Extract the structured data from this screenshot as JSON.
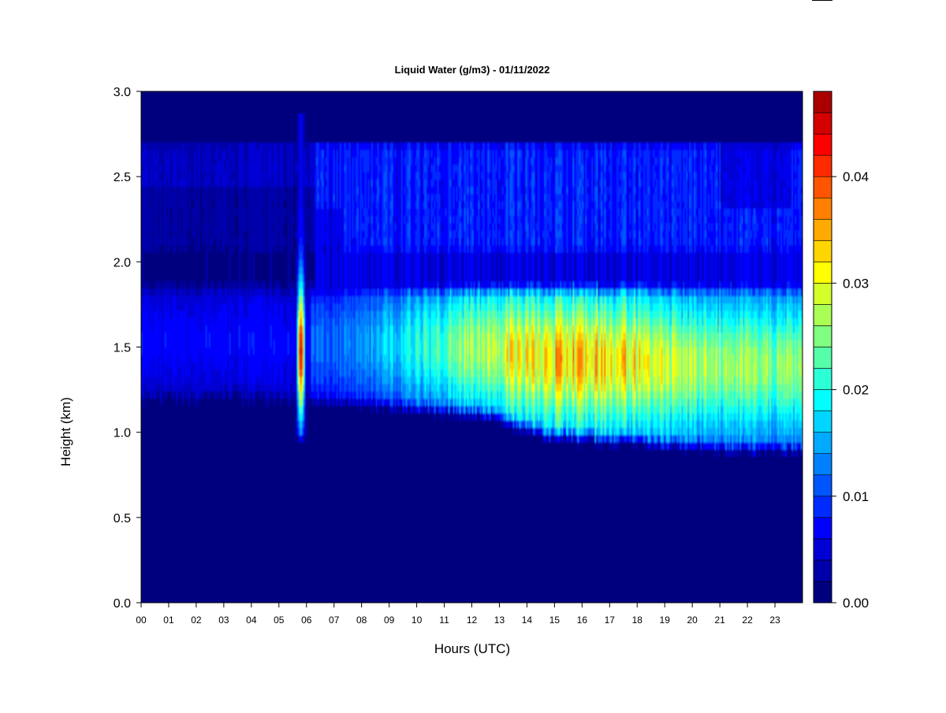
{
  "chart_data": {
    "type": "heatmap",
    "title": "Liquid Water (g/m3) - 01/11/2022",
    "xlabel": "Hours (UTC)",
    "ylabel": "Height (km)",
    "xlim": [
      0,
      24
    ],
    "ylim": [
      0.0,
      3.0
    ],
    "x_tick_labels": [
      "00",
      "01",
      "02",
      "03",
      "04",
      "05",
      "06",
      "07",
      "08",
      "09",
      "10",
      "11",
      "12",
      "13",
      "14",
      "15",
      "16",
      "17",
      "18",
      "19",
      "20",
      "21",
      "22",
      "23"
    ],
    "y_tick_labels": [
      "0.0",
      "0.5",
      "1.0",
      "1.5",
      "2.0",
      "2.5",
      "3.0"
    ],
    "colorbar": {
      "range": [
        0.0,
        0.048
      ],
      "tick_values": [
        0.0,
        0.01,
        0.02,
        0.03,
        0.04
      ],
      "tick_labels": [
        "0.00",
        "0.01",
        "0.02",
        "0.03",
        "0.04"
      ],
      "levels": 24,
      "colormap": "jet",
      "colors": [
        "#00007f",
        "#0000aa",
        "#0000d5",
        "#0000ff",
        "#002bff",
        "#0055ff",
        "#0080ff",
        "#00aaff",
        "#00d5ff",
        "#00ffff",
        "#2bffd5",
        "#55ffaa",
        "#80ff80",
        "#aaff55",
        "#d5ff2b",
        "#ffff00",
        "#ffd500",
        "#ffaa00",
        "#ff8000",
        "#ff5500",
        "#ff2b00",
        "#ff0000",
        "#d50000",
        "#aa0000"
      ]
    },
    "features": {
      "upper_layer_km": [
        2.0,
        2.72
      ],
      "main_cloud_layer_km": [
        1.1,
        1.88
      ],
      "peak_region_hours": [
        13,
        19
      ],
      "peak_value_g_m3": 0.04,
      "spike_hour": 5.8
    }
  }
}
